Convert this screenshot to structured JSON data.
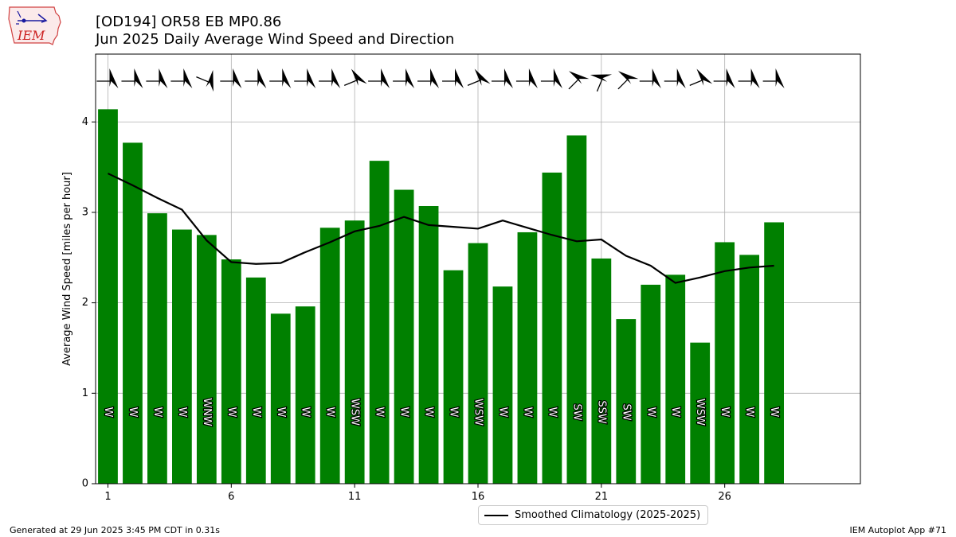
{
  "header": {
    "logo_text": "IEM",
    "title_line1": "[OD194] OR58 EB MP0.86",
    "title_line2": "Jun 2025 Daily Average Wind Speed and Direction"
  },
  "chart_data": {
    "type": "bar",
    "title": "Jun 2025 Daily Average Wind Speed and Direction",
    "ylabel": "Average Wind Speed [miles per hour]",
    "xlabel": "",
    "xlim": [
      0.5,
      31.5
    ],
    "ylim": [
      0,
      4.75
    ],
    "grid": true,
    "bar_color": "#008000",
    "line_color": "#000000",
    "x_ticks": [
      1,
      6,
      11,
      16,
      21,
      26
    ],
    "y_ticks": [
      0,
      1,
      2,
      3,
      4
    ],
    "days": [
      1,
      2,
      3,
      4,
      5,
      6,
      7,
      8,
      9,
      10,
      11,
      12,
      13,
      14,
      15,
      16,
      17,
      18,
      19,
      20,
      21,
      22,
      23,
      24,
      25,
      26,
      27,
      28
    ],
    "values": [
      4.14,
      3.77,
      2.99,
      2.81,
      2.75,
      2.48,
      2.28,
      1.88,
      1.96,
      2.83,
      2.91,
      3.57,
      3.25,
      3.07,
      2.36,
      2.66,
      2.18,
      2.78,
      3.44,
      3.85,
      2.49,
      1.82,
      2.2,
      2.31,
      1.56,
      2.67,
      2.53,
      2.89
    ],
    "directions": [
      "W",
      "W",
      "W",
      "W",
      "WNW",
      "W",
      "W",
      "W",
      "W",
      "W",
      "WSW",
      "W",
      "W",
      "W",
      "W",
      "WSW",
      "W",
      "W",
      "W",
      "SW",
      "SSW",
      "SW",
      "W",
      "W",
      "WSW",
      "W",
      "W",
      "W"
    ],
    "direction_degrees": [
      270,
      270,
      270,
      270,
      292.5,
      270,
      270,
      270,
      270,
      270,
      247.5,
      270,
      270,
      270,
      270,
      247.5,
      270,
      270,
      270,
      225,
      202.5,
      225,
      270,
      270,
      247.5,
      270,
      270,
      270
    ],
    "series": [
      {
        "name": "Smoothed Climatology (2025-2025)",
        "type": "line",
        "values": [
          3.43,
          3.3,
          3.16,
          3.03,
          2.69,
          2.45,
          2.43,
          2.44,
          2.56,
          2.67,
          2.79,
          2.85,
          2.95,
          2.86,
          2.84,
          2.82,
          2.91,
          2.83,
          2.75,
          2.68,
          2.7,
          2.52,
          2.41,
          2.22,
          2.28,
          2.35,
          2.39,
          2.41
        ]
      }
    ]
  },
  "legend": {
    "label": "Smoothed Climatology (2025-2025)"
  },
  "footer": {
    "generated": "Generated at 29 Jun 2025 3:45 PM CDT in 0.31s",
    "app": "IEM Autoplot App #71"
  }
}
